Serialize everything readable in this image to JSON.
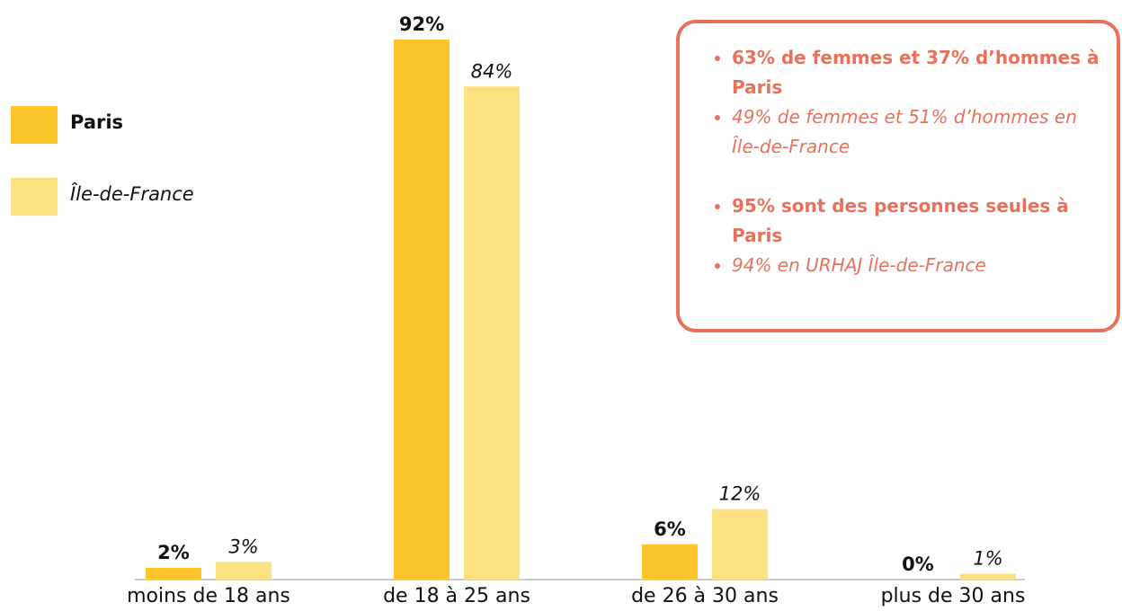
{
  "chart_data": {
    "type": "bar",
    "categories": [
      "moins de 18 ans",
      "de 18 à 25 ans",
      "de 26 à 30 ans",
      "plus de 30 ans"
    ],
    "series": [
      {
        "name": "Paris",
        "color": "#fcc62a",
        "values": [
          2,
          92,
          6,
          0
        ],
        "value_labels": [
          "2%",
          "92%",
          "6%",
          "0%"
        ]
      },
      {
        "name": "Île-de-France",
        "color": "#fde07f",
        "values": [
          3,
          84,
          12,
          1
        ],
        "value_labels": [
          "3%",
          "84%",
          "12%",
          "1%"
        ]
      }
    ],
    "annotations": [
      {
        "text": "63% de femmes et 37% d’hommes à Paris",
        "style": "bold"
      },
      {
        "text": "49% de femmes et 51% d’hommes en Île-de-France",
        "style": "italic"
      },
      {
        "text": "95% sont des personnes seules à Paris",
        "style": "bold"
      },
      {
        "text": "94% en URHAJ Île-de-France",
        "style": "italic"
      }
    ]
  }
}
